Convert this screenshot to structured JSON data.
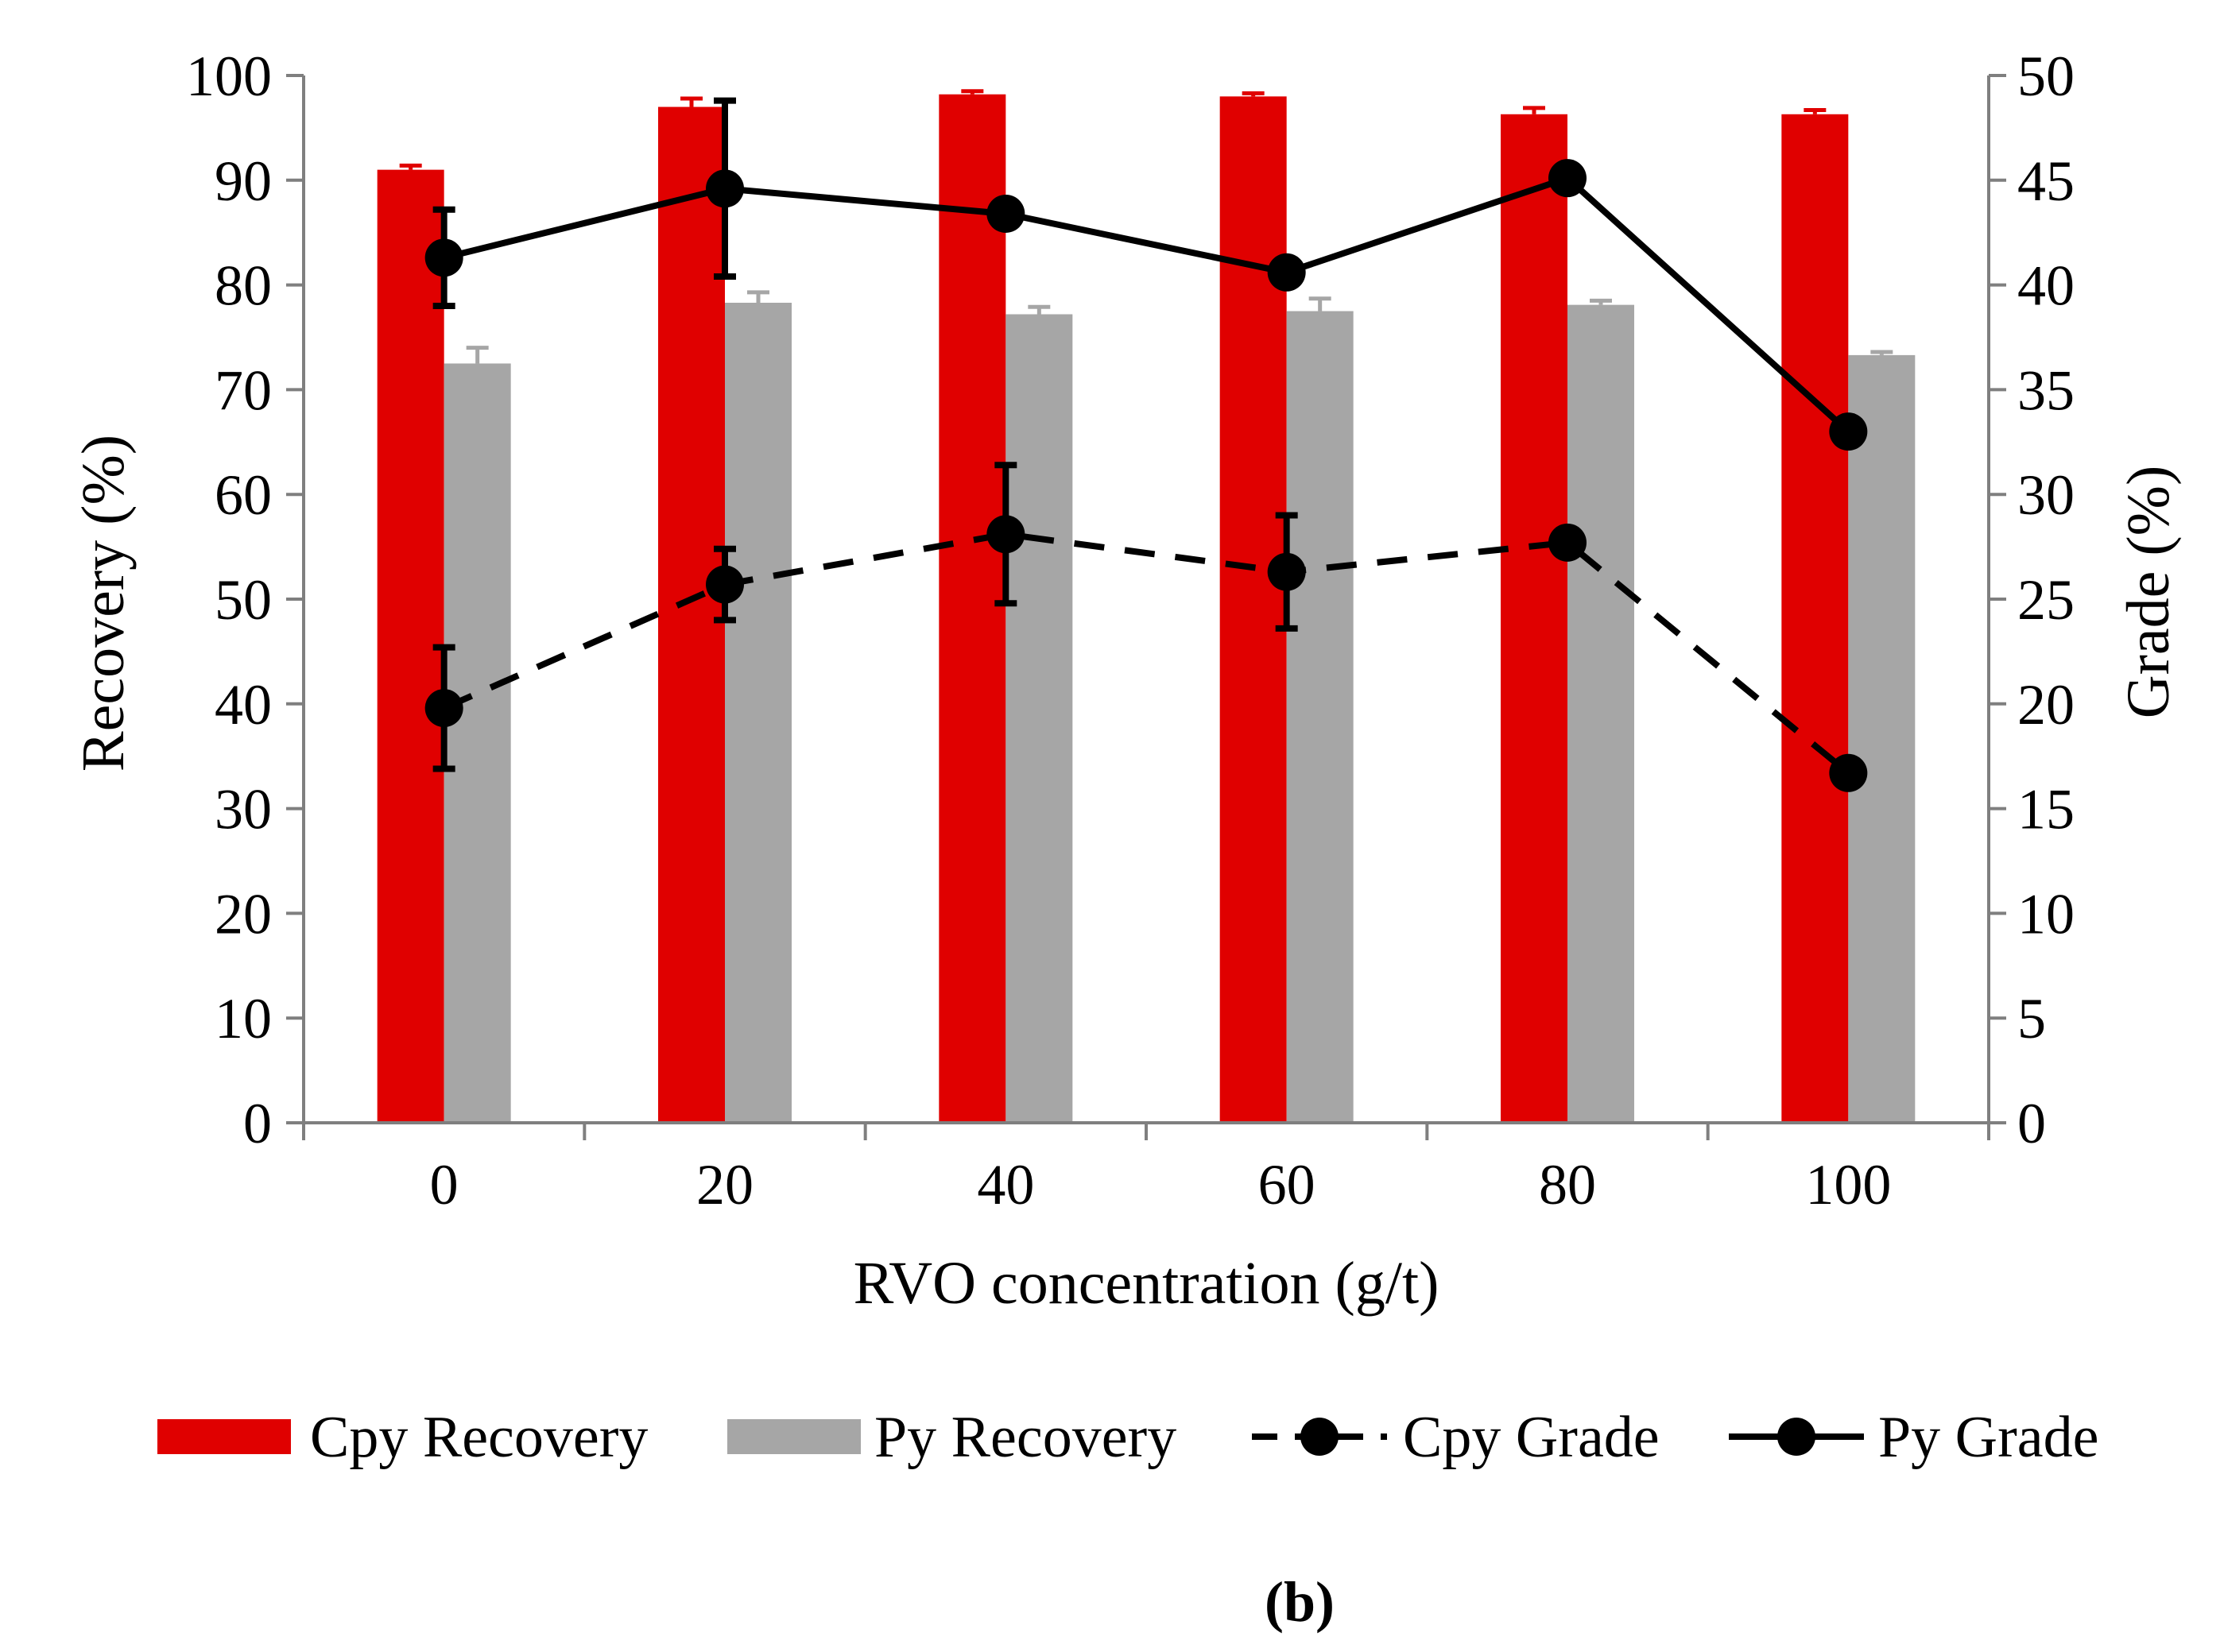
{
  "chart_data": {
    "type": "bar",
    "categories": [
      "0",
      "20",
      "40",
      "60",
      "80",
      "100"
    ],
    "xlabel": "RVO concentration (g/t)",
    "ylabel": "Recovery (%)",
    "y2label": "Grade (%)",
    "ylim": [
      0,
      100
    ],
    "y2lim": [
      0,
      50
    ],
    "yticks": [
      "0",
      "10",
      "20",
      "30",
      "40",
      "50",
      "60",
      "70",
      "80",
      "90",
      "100"
    ],
    "y2ticks": [
      "0",
      "5",
      "10",
      "15",
      "20",
      "25",
      "30",
      "35",
      "40",
      "45",
      "50"
    ],
    "bar_series": [
      {
        "name": "Cpy Recovery",
        "color": "#e00000",
        "values": [
          91.0,
          97.0,
          98.2,
          98.0,
          96.3,
          96.3
        ],
        "errors": [
          0.4,
          0.8,
          0.3,
          0.3,
          0.6,
          0.4
        ]
      },
      {
        "name": "Py Recovery",
        "color": "#a6a6a6",
        "values": [
          72.5,
          78.3,
          77.2,
          77.5,
          78.1,
          73.3
        ],
        "errors": [
          1.5,
          1.0,
          0.7,
          1.2,
          0.4,
          0.3
        ]
      }
    ],
    "line_series": [
      {
        "name": "Cpy Grade",
        "axis": "right",
        "style": "dashed",
        "color": "#000000",
        "values": [
          19.8,
          25.7,
          28.1,
          26.3,
          27.7,
          16.7
        ],
        "errors": [
          2.9,
          1.7,
          3.3,
          2.7,
          0,
          0
        ]
      },
      {
        "name": "Py Grade",
        "axis": "right",
        "style": "solid",
        "color": "#000000",
        "values": [
          41.3,
          44.6,
          43.4,
          40.6,
          45.1,
          33.0
        ],
        "errors": [
          2.3,
          4.2,
          0,
          0,
          0,
          0
        ]
      }
    ],
    "legend": [
      "Cpy Recovery",
      "Py Recovery",
      "Cpy Grade",
      "Py Grade"
    ],
    "legend_position": "bottom"
  },
  "figure_label": "(b)"
}
